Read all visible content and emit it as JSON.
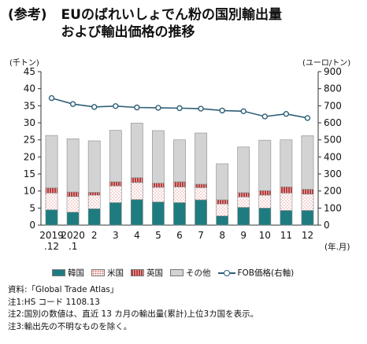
{
  "header": {
    "ref": "(参考)",
    "title_line1": "EUのばれいしょでん粉の国別輸出量",
    "title_line2": "および輸出価格の推移"
  },
  "units": {
    "left": "(千トン)",
    "right": "(ユーロ/トン)",
    "x": "(年.月)"
  },
  "legend": [
    "韓国",
    "米国",
    "英国",
    "その他",
    "FOB価格(右軸)"
  ],
  "notes": [
    "資料:「Global Trade Atlas」",
    "注1:HS コード 1108.13",
    "注2:国別の数値は、直近 13 カ月の輸出量(累計)上位3カ国を表示。",
    "注3:輸出先の不明なものを除く。"
  ],
  "colors": {
    "korea": "#1e7c80",
    "usa": "#ffffff",
    "uk": "#b43a3a",
    "other": "#d3d3d3",
    "fob": "#2e5f78"
  },
  "chart_data": {
    "type": "bar",
    "stacked": true,
    "categories": [
      "2019\n.12",
      "2020\n.1",
      "2",
      "3",
      "4",
      "5",
      "6",
      "7",
      "8",
      "9",
      "10",
      "11",
      "12"
    ],
    "series": [
      {
        "name": "韓国",
        "values": [
          4.5,
          3.8,
          4.8,
          6.6,
          7.5,
          6.8,
          6.6,
          7.4,
          2.7,
          5.2,
          5.0,
          4.3,
          4.3
        ]
      },
      {
        "name": "米国",
        "values": [
          4.9,
          4.6,
          4.0,
          4.9,
          5.0,
          4.3,
          4.6,
          3.6,
          3.5,
          3.1,
          3.8,
          5.1,
          4.8
        ]
      },
      {
        "name": "英国",
        "values": [
          1.5,
          1.3,
          0.8,
          1.2,
          1.4,
          1.2,
          1.5,
          1.0,
          1.2,
          1.2,
          1.3,
          1.8,
          1.4
        ]
      },
      {
        "name": "その他",
        "values": [
          15.4,
          15.6,
          15.1,
          15.1,
          16.0,
          15.4,
          12.3,
          15.0,
          10.6,
          13.4,
          14.8,
          13.8,
          15.7
        ]
      },
      {
        "name": "FOB価格(右軸)",
        "axis": "right",
        "values": [
          745,
          710,
          693,
          698,
          690,
          688,
          686,
          683,
          672,
          668,
          637,
          652,
          628
        ]
      }
    ],
    "ylim_left": [
      0,
      45
    ],
    "yticks_left": [
      0,
      5,
      10,
      15,
      20,
      25,
      30,
      35,
      40,
      45
    ],
    "ylim_right": [
      0,
      900
    ],
    "yticks_right": [
      0,
      100,
      200,
      300,
      400,
      500,
      600,
      700,
      800,
      900
    ],
    "grid": false
  }
}
